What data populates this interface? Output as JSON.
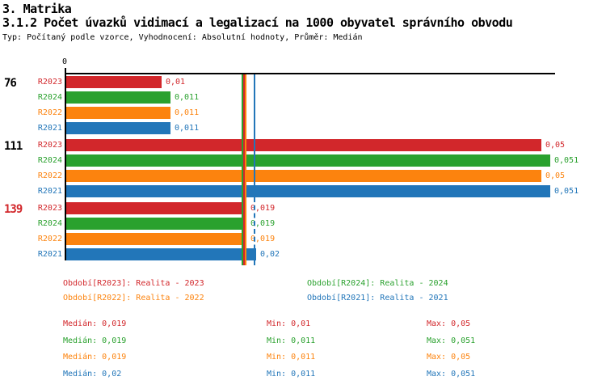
{
  "titles": {
    "section": "3. Matrika",
    "main": "3.1.2 Počet úvazků vidimací a legalizací na 1000 obyvatel správního obvodu",
    "subtitle": "Typ: Počítaný podle vzorce, Vyhodnocení: Absolutní hodnoty, Průměr: Medián"
  },
  "colors": {
    "red": "#d2272b",
    "green": "#2aa12e",
    "orange": "#fc830e",
    "blue": "#2276b9",
    "axis": "#000000",
    "highlight_group": "#d2272b"
  },
  "chart_data": {
    "type": "bar",
    "orientation": "horizontal",
    "axis": {
      "zero_label": "0"
    },
    "xlim": [
      0,
      0.0557
    ],
    "series_order": [
      "R2023",
      "R2024",
      "R2022",
      "R2021"
    ],
    "groups": [
      {
        "label": "76",
        "label_color_key": "black",
        "bars": [
          {
            "series": "R2023",
            "color_key": "red",
            "value": 0.01,
            "value_label": "0,01"
          },
          {
            "series": "R2024",
            "color_key": "green",
            "value": 0.011,
            "value_label": "0,011"
          },
          {
            "series": "R2022",
            "color_key": "orange",
            "value": 0.011,
            "value_label": "0,011"
          },
          {
            "series": "R2021",
            "color_key": "blue",
            "value": 0.011,
            "value_label": "0,011"
          }
        ]
      },
      {
        "label": "111",
        "label_color_key": "black",
        "bars": [
          {
            "series": "R2023",
            "color_key": "red",
            "value": 0.05,
            "value_label": "0,05"
          },
          {
            "series": "R2024",
            "color_key": "green",
            "value": 0.051,
            "value_label": "0,051"
          },
          {
            "series": "R2022",
            "color_key": "orange",
            "value": 0.05,
            "value_label": "0,05"
          },
          {
            "series": "R2021",
            "color_key": "blue",
            "value": 0.051,
            "value_label": "0,051"
          }
        ]
      },
      {
        "label": "139",
        "label_color_key": "red",
        "bars": [
          {
            "series": "R2023",
            "color_key": "red",
            "value": 0.019,
            "value_label": "0,019"
          },
          {
            "series": "R2024",
            "color_key": "green",
            "value": 0.019,
            "value_label": "0,019"
          },
          {
            "series": "R2022",
            "color_key": "orange",
            "value": 0.019,
            "value_label": "0,019"
          },
          {
            "series": "R2021",
            "color_key": "blue",
            "value": 0.02,
            "value_label": "0,02"
          }
        ]
      }
    ],
    "median_lines": [
      {
        "series": "R2024",
        "color_key": "green",
        "value": 0.019,
        "dx": -5.25,
        "split_dashed": false
      },
      {
        "series": "R2023",
        "color_key": "red",
        "value": 0.019,
        "dx": -3.25,
        "split_dashed": false
      },
      {
        "series": "R2022",
        "color_key": "orange",
        "value": 0.019,
        "dx": -1.25,
        "split_dashed": false
      },
      {
        "series": "R2021",
        "color_key": "blue",
        "value": 0.02,
        "dx": -2.5,
        "split_dashed": true
      }
    ]
  },
  "legend": {
    "items": [
      {
        "label": "Období[R2023]: Realita - 2023",
        "color_key": "red"
      },
      {
        "label": "Období[R2024]: Realita - 2024",
        "color_key": "green"
      },
      {
        "label": "Období[R2022]: Realita - 2022",
        "color_key": "orange"
      },
      {
        "label": "Období[R2021]: Realita - 2021",
        "color_key": "blue"
      }
    ]
  },
  "stats": {
    "rows": [
      {
        "color_key": "red",
        "median": "Medián: 0,019",
        "min": "Min: 0,01",
        "max": "Max: 0,05"
      },
      {
        "color_key": "green",
        "median": "Medián: 0,019",
        "min": "Min: 0,011",
        "max": "Max: 0,051"
      },
      {
        "color_key": "orange",
        "median": "Medián: 0,019",
        "min": "Min: 0,011",
        "max": "Max: 0,05"
      },
      {
        "color_key": "blue",
        "median": "Medián: 0,02",
        "min": "Min: 0,011",
        "max": "Max: 0,051"
      }
    ]
  }
}
